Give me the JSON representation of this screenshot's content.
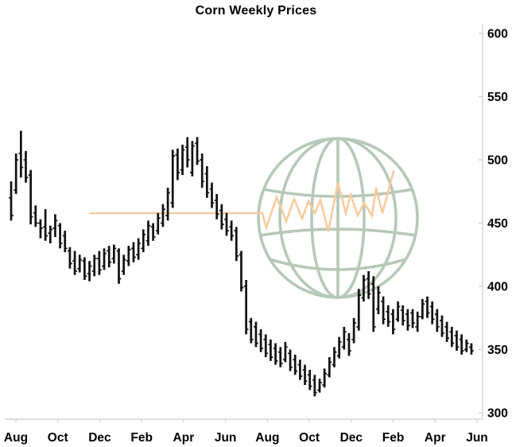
{
  "title": "Corn Weekly Prices",
  "chart_data": {
    "type": "bar",
    "subtype": "ohlc-weekly-bars",
    "title": "Corn Weekly Prices",
    "xlabel": "",
    "ylabel": "",
    "grid": false,
    "legend": false,
    "y_axis_side": "right",
    "ylim": [
      295,
      610
    ],
    "y_ticks": [
      300,
      350,
      400,
      450,
      500,
      550,
      600
    ],
    "x_tick_labels": [
      "Aug",
      "Oct",
      "Dec",
      "Feb",
      "Apr",
      "Jun",
      "Aug",
      "Oct",
      "Dec",
      "Feb",
      "Apr",
      "Jun"
    ],
    "series": [
      {
        "name": "Corn weekly price",
        "bar_format": [
          "high",
          "low",
          "open",
          "close"
        ],
        "bars": [
          [
            483,
            452,
            470,
            456
          ],
          [
            505,
            473,
            476,
            500
          ],
          [
            523,
            486,
            505,
            494
          ],
          [
            507,
            482,
            500,
            486
          ],
          [
            492,
            449,
            488,
            455
          ],
          [
            464,
            447,
            458,
            450
          ],
          [
            453,
            438,
            450,
            446
          ],
          [
            461,
            436,
            447,
            440
          ],
          [
            448,
            434,
            442,
            445
          ],
          [
            457,
            439,
            446,
            452
          ],
          [
            450,
            430,
            448,
            434
          ],
          [
            444,
            427,
            440,
            430
          ],
          [
            431,
            414,
            428,
            418
          ],
          [
            428,
            409,
            420,
            412
          ],
          [
            425,
            411,
            414,
            421
          ],
          [
            423,
            405,
            420,
            408
          ],
          [
            420,
            404,
            410,
            416
          ],
          [
            425,
            408,
            412,
            422
          ],
          [
            428,
            409,
            422,
            413
          ],
          [
            430,
            413,
            416,
            426
          ],
          [
            432,
            415,
            428,
            419
          ],
          [
            433,
            418,
            422,
            430
          ],
          [
            430,
            402,
            428,
            406
          ],
          [
            425,
            409,
            412,
            421
          ],
          [
            432,
            416,
            420,
            429
          ],
          [
            435,
            419,
            430,
            423
          ],
          [
            438,
            421,
            425,
            434
          ],
          [
            445,
            427,
            430,
            441
          ],
          [
            452,
            432,
            436,
            448
          ],
          [
            450,
            436,
            447,
            439
          ],
          [
            458,
            441,
            444,
            454
          ],
          [
            465,
            447,
            450,
            461
          ],
          [
            478,
            452,
            456,
            474
          ],
          [
            508,
            462,
            466,
            503
          ],
          [
            509,
            484,
            504,
            490
          ],
          [
            512,
            488,
            492,
            508
          ],
          [
            518,
            494,
            510,
            500
          ],
          [
            515,
            487,
            490,
            511
          ],
          [
            518,
            496,
            513,
            499
          ],
          [
            505,
            478,
            500,
            483
          ],
          [
            495,
            470,
            489,
            474
          ],
          [
            482,
            462,
            477,
            466
          ],
          [
            473,
            453,
            468,
            457
          ],
          [
            465,
            445,
            460,
            449
          ],
          [
            458,
            440,
            453,
            444
          ],
          [
            452,
            436,
            447,
            440
          ],
          [
            447,
            420,
            444,
            424
          ],
          [
            428,
            396,
            425,
            399
          ],
          [
            405,
            362,
            400,
            366
          ],
          [
            375,
            355,
            372,
            358
          ],
          [
            372,
            352,
            368,
            355
          ],
          [
            366,
            348,
            362,
            351
          ],
          [
            362,
            344,
            358,
            347
          ],
          [
            358,
            341,
            354,
            344
          ],
          [
            355,
            338,
            351,
            341
          ],
          [
            352,
            336,
            348,
            339
          ],
          [
            356,
            340,
            342,
            352
          ],
          [
            350,
            333,
            347,
            336
          ],
          [
            346,
            330,
            342,
            333
          ],
          [
            342,
            326,
            338,
            329
          ],
          [
            338,
            322,
            334,
            325
          ],
          [
            334,
            318,
            330,
            321
          ],
          [
            330,
            313,
            326,
            316
          ],
          [
            327,
            316,
            318,
            324
          ],
          [
            335,
            320,
            322,
            331
          ],
          [
            344,
            328,
            330,
            340
          ],
          [
            352,
            336,
            338,
            348
          ],
          [
            360,
            343,
            345,
            356
          ],
          [
            368,
            350,
            352,
            364
          ],
          [
            363,
            345,
            358,
            349
          ],
          [
            375,
            355,
            358,
            371
          ],
          [
            398,
            365,
            368,
            393
          ],
          [
            409,
            388,
            391,
            405
          ],
          [
            412,
            390,
            406,
            394
          ],
          [
            408,
            364,
            402,
            368
          ],
          [
            400,
            378,
            382,
            395
          ],
          [
            392,
            370,
            388,
            374
          ],
          [
            385,
            368,
            380,
            372
          ],
          [
            382,
            362,
            378,
            366
          ],
          [
            388,
            372,
            374,
            384
          ],
          [
            385,
            369,
            381,
            373
          ],
          [
            382,
            365,
            378,
            369
          ],
          [
            382,
            367,
            379,
            371
          ],
          [
            380,
            364,
            368,
            376
          ],
          [
            390,
            374,
            376,
            386
          ],
          [
            392,
            375,
            388,
            379
          ],
          [
            388,
            370,
            384,
            374
          ],
          [
            382,
            364,
            378,
            368
          ],
          [
            377,
            360,
            373,
            363
          ],
          [
            372,
            356,
            368,
            359
          ],
          [
            368,
            352,
            364,
            355
          ],
          [
            365,
            349,
            361,
            352
          ],
          [
            362,
            346,
            358,
            349
          ],
          [
            358,
            348,
            350,
            355
          ],
          [
            355,
            346,
            352,
            349
          ]
        ]
      }
    ],
    "annotations": {
      "watermark": "globe logo with price zigzag line"
    }
  },
  "colors": {
    "bar": "#111111",
    "axis_line": "#cccccc",
    "tick_text": "#000000",
    "background": "#ffffff",
    "watermark_green": "#b6c8b8",
    "watermark_orange": "#f6cc9e"
  }
}
